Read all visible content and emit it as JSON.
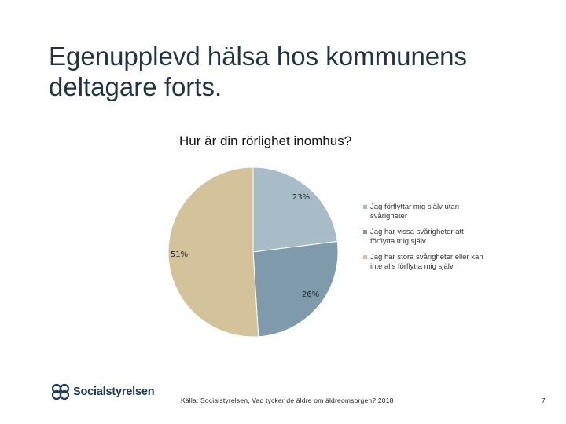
{
  "slide": {
    "title": "Egenupplevd hälsa hos kommunens deltagare forts.",
    "source": "Källa: Socialstyrelsen, Vad tycker de äldre om äldreomsorgen? 2018",
    "page_number": "7",
    "logo_text": "Socialstyrelsen"
  },
  "chart_data": {
    "type": "pie",
    "title": "Hur är din rörlighet inomhus?",
    "slices": [
      {
        "name": "Jag förflyttar mig själv utan svårigheter",
        "value": 23,
        "label": "23%",
        "color": "#a7bcc7"
      },
      {
        "name": "Jag har vissa svårigheter att förflytta mig själv",
        "value": 26,
        "label": "26%",
        "color": "#7f9aaa"
      },
      {
        "name": "Jag har stora svårigheter eller kan inte alls förflytta mig själv",
        "value": 51,
        "label": "51%",
        "color": "#d3c29a"
      }
    ],
    "start_angle": "12 o'clock",
    "direction": "clockwise",
    "legend_position": "right"
  }
}
